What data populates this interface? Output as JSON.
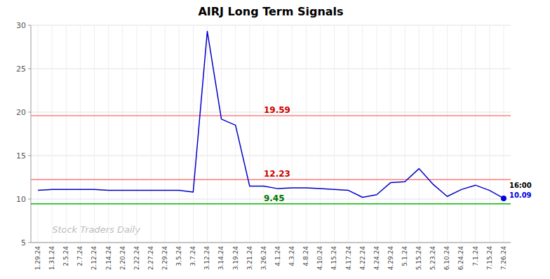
{
  "chart_data": {
    "type": "line",
    "title": "AIRJ Long Term Signals",
    "watermark": "Stock Traders Daily",
    "categories": [
      "1.29.24",
      "1.31.24",
      "2.5.24",
      "2.7.24",
      "2.12.24",
      "2.14.24",
      "2.20.24",
      "2.22.24",
      "2.27.24",
      "2.29.24",
      "3.5.24",
      "3.7.24",
      "3.12.24",
      "3.14.24",
      "3.19.24",
      "3.21.24",
      "3.26.24",
      "4.1.24",
      "4.3.24",
      "4.8.24",
      "4.10.24",
      "4.15.24",
      "4.17.24",
      "4.22.24",
      "4.24.24",
      "4.29.24",
      "5.1.24",
      "5.15.24",
      "5.23.24",
      "6.10.24",
      "6.24.24",
      "7.1.24",
      "7.15.24",
      "7.26.24"
    ],
    "series": [
      {
        "color": "#0000cc",
        "values": [
          11.0,
          11.1,
          11.1,
          11.1,
          11.1,
          11.0,
          11.0,
          11.0,
          11.0,
          11.0,
          11.0,
          10.8,
          29.3,
          19.2,
          18.5,
          11.5,
          11.5,
          11.2,
          11.3,
          11.3,
          11.2,
          11.1,
          11.0,
          10.2,
          10.5,
          11.9,
          12.0,
          13.5,
          11.7,
          10.3,
          11.1,
          11.6,
          11.0,
          10.09
        ],
        "last_label": "16:00",
        "last_value": 10.09,
        "last_value_color": "#0000dd"
      }
    ],
    "reference_lines": [
      {
        "value": 19.59,
        "label": "19.59",
        "color": "#ff8080",
        "label_color": "#cc0000"
      },
      {
        "value": 12.23,
        "label": "12.23",
        "color": "#ff8080",
        "label_color": "#cc0000"
      },
      {
        "value": 9.45,
        "label": "9.45",
        "color": "#00bb00",
        "label_color": "#007700"
      }
    ],
    "ylim": [
      5,
      30
    ],
    "yticks": [
      5,
      10,
      15,
      20,
      25,
      30
    ],
    "grid": true
  }
}
